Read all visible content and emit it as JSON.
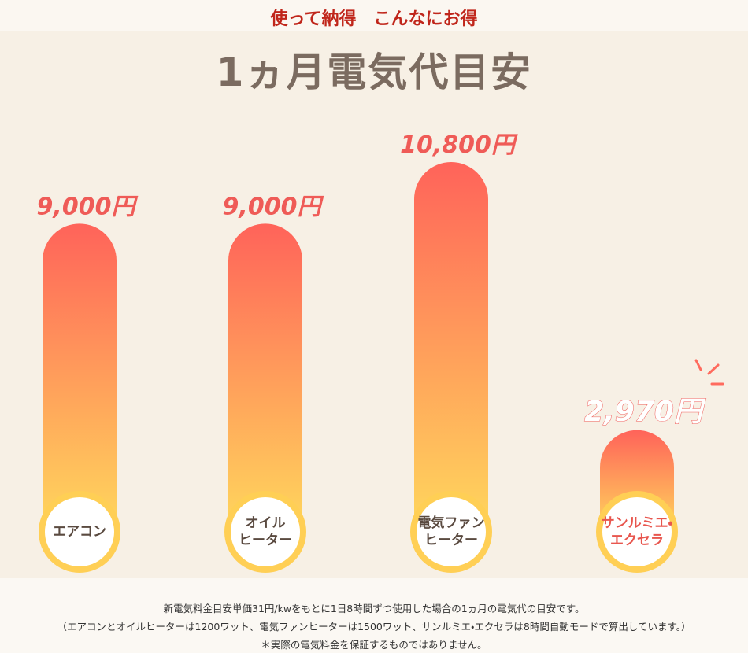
{
  "header": {
    "tagline": "使って納得　こんなにお得"
  },
  "chart_data": {
    "type": "bar",
    "title": "1ヵ月電気代目安",
    "categories": [
      "エアコン",
      "オイル\nヒーター",
      "電気ファン\nヒーター",
      "サンルミエ・\nエクセラ"
    ],
    "values": [
      9000,
      9000,
      10800,
      2970
    ],
    "value_labels": [
      "9,000円",
      "9,000円",
      "10,800円",
      "2,970円"
    ],
    "gradient": [
      "#ff635a",
      "#ffd85c"
    ]
  },
  "footnotes": [
    "新電気料金目安単価31円/kwをもとに1日8時間ずつ使用した場合の1ヵ月の電気代の目安です。",
    "（エアコンとオイルヒーターは1200ワット、電気ファンヒーターは1500ワット、サンルミエ・エクセラは8時間自動モードで算出しています。）",
    "＊実際の電気料金を保証するものではありません。"
  ]
}
